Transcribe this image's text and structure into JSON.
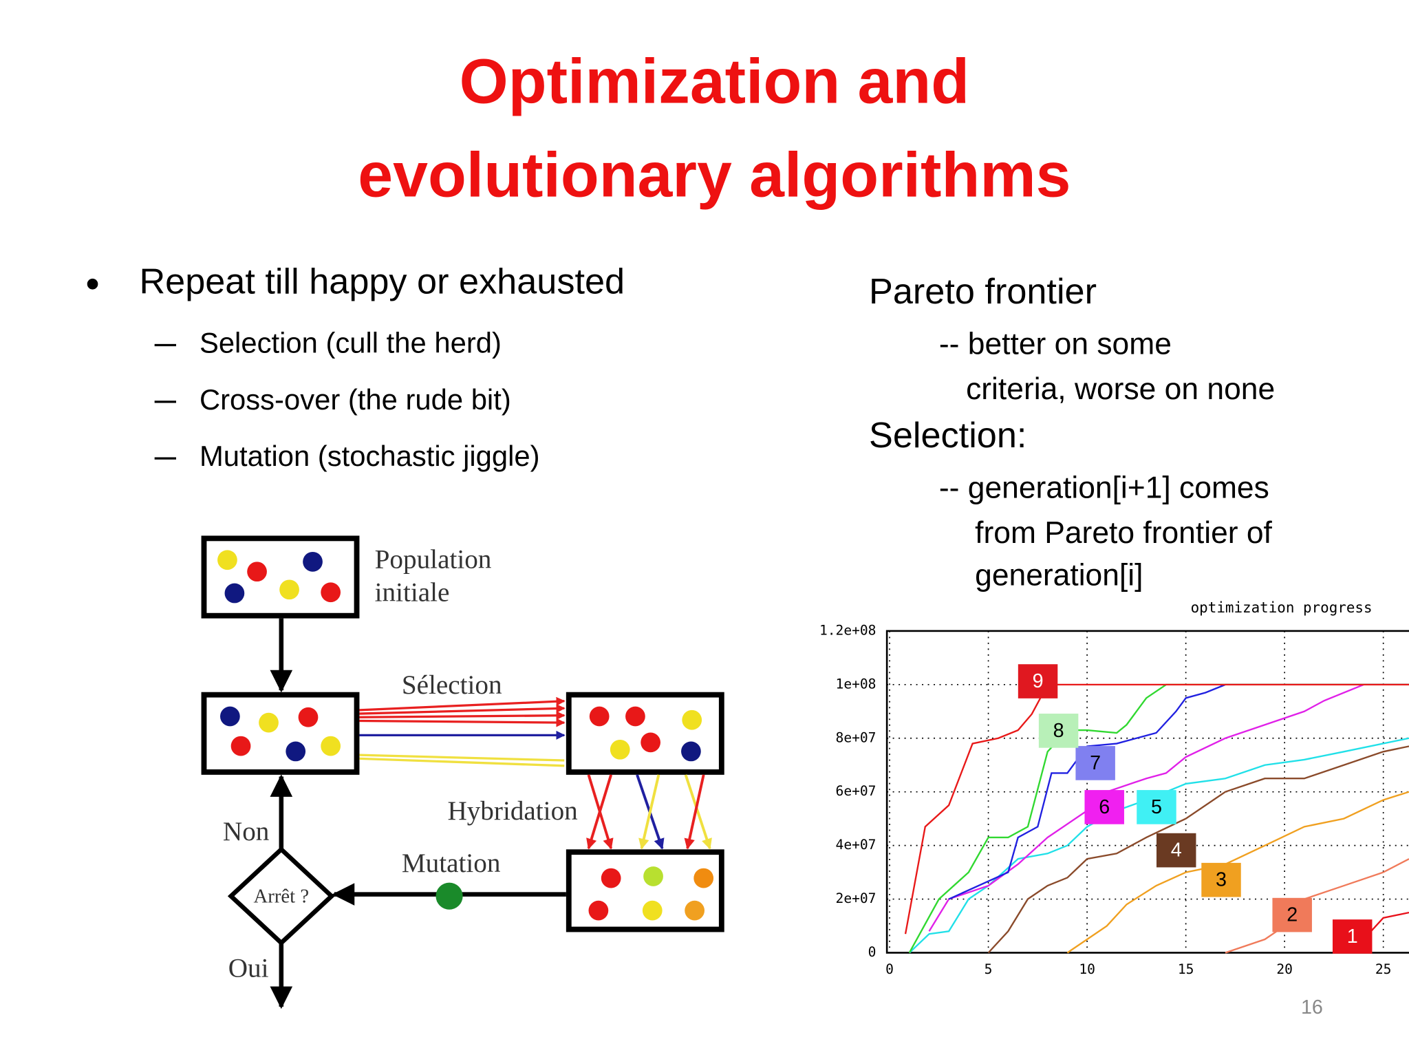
{
  "title": [
    "Optimization and",
    "evolutionary algorithms"
  ],
  "bullets": {
    "text": "Repeat till happy or exhausted",
    "sub": [
      "Selection (cull the herd)",
      "Cross-over (the rude bit)",
      "Mutation (stochastic jiggle)"
    ]
  },
  "right": [
    "Pareto frontier",
    "-- better on some",
    "criteria, worse on none",
    "Selection:",
    "-- generation[i+1] comes",
    "from Pareto frontier of",
    "generation[i]"
  ],
  "diagram": {
    "population": [
      "Population",
      "initiale"
    ],
    "selection": "Sélection",
    "hybridation": "Hybridation",
    "mutation": "Mutation",
    "no": "Non",
    "stop": "Arrêt ?",
    "yes": "Oui"
  },
  "chart_data": {
    "type": "line",
    "title": "optimization progress",
    "xlim": [
      0,
      26.3
    ],
    "xticks": [
      0,
      5,
      10,
      15,
      20,
      25
    ],
    "ylim": [
      0,
      120000000.0
    ],
    "yticks": [
      0,
      {
        "value": 20000000.0,
        "label": "2e+07"
      },
      {
        "value": 40000000.0,
        "label": "4e+07"
      },
      {
        "value": 60000000.0,
        "label": "6e+07"
      },
      {
        "value": 80000000.0,
        "label": "8e+07"
      },
      {
        "value": 100000000.0,
        "label": "1e+08"
      },
      {
        "value": 120000000.0,
        "label": "1.2e+08"
      }
    ],
    "grid": true,
    "series": [
      {
        "name": "1",
        "color": "#e8101a",
        "box_color": "#e8101a",
        "x": [
          22.5,
          24,
          25,
          26.3
        ],
        "values": [
          0,
          5000000.0,
          13000000.0,
          15000000.0
        ]
      },
      {
        "name": "2",
        "color": "#f07a5a",
        "box_color": "#f07a5a",
        "x": [
          17,
          19,
          20,
          21,
          23,
          25,
          26.3
        ],
        "values": [
          0,
          5000000.0,
          10000000.0,
          20000000.0,
          25000000.0,
          30000000.0,
          35000000.0
        ]
      },
      {
        "name": "3",
        "color": "#f0a020",
        "box_color": "#f0a020",
        "x": [
          9,
          10,
          11,
          12,
          13.5,
          15,
          17,
          19,
          21,
          23,
          25,
          26.3
        ],
        "values": [
          0,
          5000000.0,
          10000000.0,
          18000000.0,
          25000000.0,
          30000000.0,
          33000000.0,
          40000000.0,
          47000000.0,
          50000000.0,
          57000000.0,
          60000000.0
        ]
      },
      {
        "name": "4",
        "color": "#8a4a2a",
        "box_color": "#6a3a22",
        "x": [
          5,
          6,
          7,
          8,
          9,
          10,
          11.5,
          13,
          15,
          17,
          19,
          21,
          23,
          25,
          26.3
        ],
        "values": [
          0,
          8000000.0,
          20000000.0,
          25000000.0,
          28000000.0,
          35000000.0,
          37000000.0,
          43000000.0,
          50000000.0,
          60000000.0,
          65000000.0,
          65000000.0,
          70000000.0,
          75000000.0,
          77000000.0
        ]
      },
      {
        "name": "5",
        "color": "#20e0e8",
        "box_color": "#40f0f4",
        "x": [
          1,
          2,
          3,
          4,
          5,
          6.5,
          8,
          9,
          10,
          11.5,
          13,
          15,
          17,
          19,
          21,
          23,
          26.3
        ],
        "values": [
          0,
          7000000.0,
          8000000.0,
          20000000.0,
          25000000.0,
          35000000.0,
          37000000.0,
          40000000.0,
          47000000.0,
          53000000.0,
          57000000.0,
          63000000.0,
          65000000.0,
          70000000.0,
          72000000.0,
          75000000.0,
          80000000.0
        ]
      },
      {
        "name": "6",
        "color": "#e020e8",
        "box_color": "#f020f0",
        "x": [
          2,
          3,
          5,
          6.5,
          8,
          10,
          11,
          13,
          14,
          15,
          17,
          19,
          21,
          22,
          24,
          26.3
        ],
        "values": [
          8000000.0,
          20000000.0,
          25000000.0,
          33000000.0,
          43000000.0,
          53000000.0,
          60000000.0,
          65000000.0,
          67000000.0,
          73000000.0,
          80000000.0,
          85000000.0,
          90000000.0,
          94000000.0,
          100000000.0,
          100000000.0
        ]
      },
      {
        "name": "7",
        "color": "#2020e0",
        "box_color": "#8080f0",
        "x": [
          3,
          6,
          6.5,
          7.5,
          8.2,
          9,
          10,
          11.5,
          12.5,
          13.5,
          14.5,
          15,
          16,
          17,
          26.3
        ],
        "values": [
          20000000.0,
          30000000.0,
          43000000.0,
          47000000.0,
          67000000.0,
          67000000.0,
          77000000.0,
          78000000.0,
          80000000.0,
          82000000.0,
          90000000.0,
          95000000.0,
          97000000.0,
          100000000.0,
          100000000.0
        ]
      },
      {
        "name": "8",
        "color": "#30d830",
        "box_color": "#b8f0b8",
        "x": [
          1,
          2.5,
          4,
          5,
          6,
          7,
          8,
          9,
          10,
          11.5,
          12,
          13,
          14,
          26.3
        ],
        "values": [
          0,
          20000000.0,
          30000000.0,
          43000000.0,
          43000000.0,
          47000000.0,
          75000000.0,
          83000000.0,
          83000000.0,
          82000000.0,
          85000000.0,
          95000000.0,
          100000000.0,
          100000000.0
        ]
      },
      {
        "name": "9",
        "color": "#e81818",
        "box_color": "#e01820",
        "x": [
          0.8,
          1.8,
          3,
          4.2,
          5.5,
          6.5,
          7.2,
          8,
          26.3
        ],
        "values": [
          7000000.0,
          47000000.0,
          55000000.0,
          78000000.0,
          80000000.0,
          83000000.0,
          89000000.0,
          100000000.0,
          100000000.0
        ]
      }
    ]
  },
  "page_number": "16"
}
